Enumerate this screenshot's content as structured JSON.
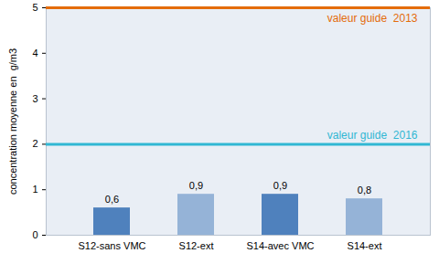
{
  "chart_data": {
    "type": "bar",
    "y_label": "concentration moyenne en  g/m3",
    "categories": [
      "S12-sans VMC",
      "S12-ext",
      "S14-avec VMC",
      "S14-ext"
    ],
    "values": [
      0.6,
      0.9,
      0.9,
      0.8
    ],
    "value_labels": [
      "0,6",
      "0,9",
      "0,9",
      "0,8"
    ],
    "colors": [
      "#4f81bd",
      "#95b3d7",
      "#4f81bd",
      "#95b3d7"
    ],
    "data_labels": true,
    "ylim": [
      0,
      5
    ],
    "yticks": [
      0,
      1,
      2,
      3,
      4,
      5
    ],
    "grid": false,
    "reference_lines": [
      {
        "value": 5,
        "label": "valeur guide  2013",
        "color": "#e46c0a"
      },
      {
        "value": 2,
        "label": "valeur guide  2016",
        "color": "#31b7d3"
      }
    ]
  }
}
